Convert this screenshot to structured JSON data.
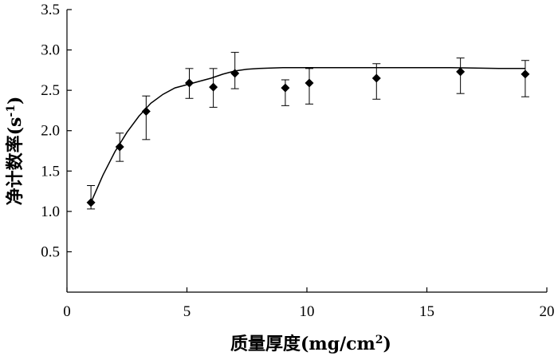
{
  "chart_data": {
    "type": "scatter",
    "xlabel": "质量厚度(mg/cm",
    "xlabel_sup": "2",
    "xlabel_close": ")",
    "ylabel": "净计数率(s",
    "ylabel_sup": "-1",
    "ylabel_close": ")",
    "xlim": [
      0,
      20
    ],
    "ylim": [
      0,
      3.5
    ],
    "x_ticks": [
      "0",
      "5",
      "10",
      "15",
      "20"
    ],
    "y_ticks": [
      "0.5",
      "1.0",
      "1.5",
      "2.0",
      "2.5",
      "3.0",
      "3.5"
    ],
    "grid": false,
    "series": [
      {
        "points": [
          {
            "x": 1.0,
            "y": 1.11,
            "err_low": 1.03,
            "err_high": 1.32
          },
          {
            "x": 2.2,
            "y": 1.8,
            "err_low": 1.62,
            "err_high": 1.97
          },
          {
            "x": 3.3,
            "y": 2.24,
            "err_low": 1.89,
            "err_high": 2.43
          },
          {
            "x": 5.1,
            "y": 2.59,
            "err_low": 2.4,
            "err_high": 2.77
          },
          {
            "x": 6.1,
            "y": 2.54,
            "err_low": 2.29,
            "err_high": 2.77
          },
          {
            "x": 7.0,
            "y": 2.71,
            "err_low": 2.52,
            "err_high": 2.97
          },
          {
            "x": 9.1,
            "y": 2.53,
            "err_low": 2.31,
            "err_high": 2.63
          },
          {
            "x": 10.1,
            "y": 2.59,
            "err_low": 2.33,
            "err_high": 2.77
          },
          {
            "x": 12.9,
            "y": 2.65,
            "err_low": 2.39,
            "err_high": 2.83
          },
          {
            "x": 16.4,
            "y": 2.73,
            "err_low": 2.46,
            "err_high": 2.9
          },
          {
            "x": 19.1,
            "y": 2.7,
            "err_low": 2.42,
            "err_high": 2.87
          }
        ]
      }
    ],
    "fit_curve": {
      "x": [
        1.0,
        1.5,
        2.0,
        2.5,
        3.0,
        3.5,
        4.0,
        4.5,
        5.0,
        5.5,
        6.0,
        6.5,
        7.0,
        7.5,
        8.0,
        9.0,
        10.0,
        12.0,
        14.0,
        16.0,
        18.0,
        19.1
      ],
      "y": [
        1.11,
        1.45,
        1.74,
        1.98,
        2.18,
        2.34,
        2.45,
        2.53,
        2.57,
        2.61,
        2.65,
        2.7,
        2.74,
        2.76,
        2.77,
        2.78,
        2.78,
        2.78,
        2.78,
        2.78,
        2.77,
        2.77
      ]
    }
  }
}
